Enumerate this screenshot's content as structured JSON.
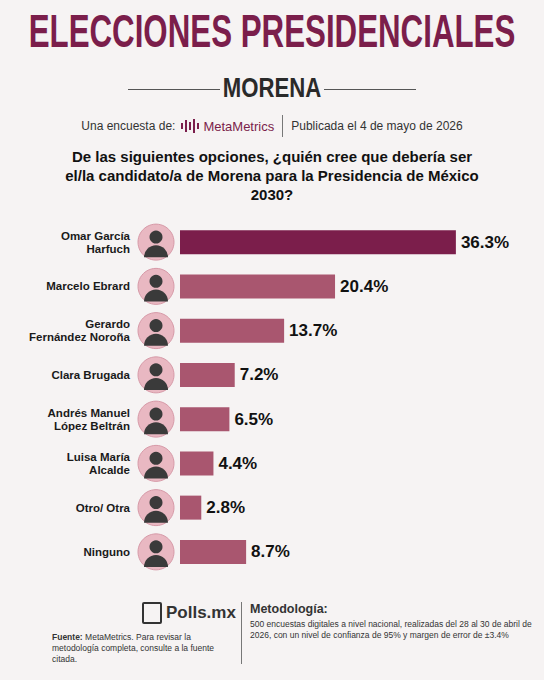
{
  "header": {
    "title": "ELECCIONES PRESIDENCIALES",
    "subtitle": "MORENA",
    "survey_by": "Una encuesta de:",
    "pollster": "MetaMetrics",
    "published": "Publicada el 4 de mayo de 2026"
  },
  "chart_data": {
    "type": "bar",
    "orientation": "horizontal",
    "title": "De las siguientes opciones, ¿quién cree que debería ser el/la candidato/a de Morena para la Presidencia de México 2030?",
    "categories": [
      "Omar García Harfuch",
      "Marcelo Ebrard",
      "Gerardo Fernández Noroña",
      "Clara Brugada",
      "Andrés Manuel López Beltrán",
      "Luisa María Alcalde",
      "Otro/ Otra",
      "Ninguno"
    ],
    "values": [
      36.3,
      20.4,
      13.7,
      7.2,
      6.5,
      4.4,
      2.8,
      8.7
    ],
    "value_labels": [
      "36.3%",
      "20.4%",
      "13.7%",
      "7.2%",
      "6.5%",
      "4.4%",
      "2.8%",
      "8.7%"
    ],
    "colors": [
      "#7b1e4b",
      "#a9566f",
      "#a9566f",
      "#a9566f",
      "#a9566f",
      "#a9566f",
      "#a9566f",
      "#a9566f"
    ],
    "xlim": [
      0,
      40
    ],
    "data_labels": true,
    "tick_labels": "y",
    "grid": false
  },
  "footer": {
    "logo": "Polls.mx",
    "source_label": "Fuente:",
    "source": "MetaMetrics. Para revisar la metodología completa, consulte a la fuente citada.",
    "methodology_title": "Metodología:",
    "methodology": "500 encuestas digitales a nivel nacional, realizadas del 28 al 30 de abril de 2026, con un nivel de confianza de 95% y margen de error de ±3.4%"
  }
}
